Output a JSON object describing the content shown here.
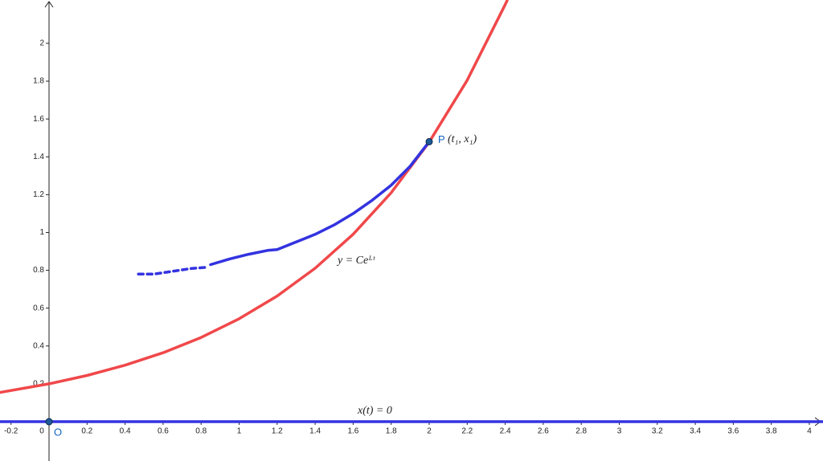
{
  "chart_data": {
    "type": "line",
    "xlim": [
      -0.258,
      4.072
    ],
    "ylim": [
      -0.208,
      2.229
    ],
    "xticks": [
      -0.2,
      0,
      0.2,
      0.4,
      0.6,
      0.8,
      1,
      1.2,
      1.4,
      1.6,
      1.8,
      2,
      2.2,
      2.4,
      2.6,
      2.8,
      3,
      3.2,
      3.4,
      3.6,
      3.8,
      4
    ],
    "yticks": [
      0.2,
      0.4,
      0.6,
      0.8,
      1,
      1.2,
      1.4,
      1.6,
      1.8,
      2
    ],
    "series": [
      {
        "color": "#f0484a",
        "dash": false,
        "x": [
          -0.26,
          0,
          0.2,
          0.4,
          0.6,
          0.8,
          1.0,
          1.2,
          1.4,
          1.6,
          1.8,
          2.0,
          2.2,
          2.4,
          2.41
        ],
        "values": [
          0.1542,
          0.2,
          0.2443,
          0.2984,
          0.3644,
          0.4451,
          0.5437,
          0.664,
          0.811,
          0.9906,
          1.2099,
          1.4778,
          1.805,
          2.2046,
          2.2268
        ]
      },
      {
        "color": "#3333e0",
        "dash": true,
        "x": [
          0.47,
          0.55,
          0.65,
          0.75,
          0.82
        ],
        "values": [
          0.78,
          0.78,
          0.795,
          0.81,
          0.815
        ]
      },
      {
        "color": "#3333e0",
        "dash": false,
        "x": [
          0.85,
          0.95,
          1.05,
          1.15,
          1.2,
          1.3,
          1.4,
          1.5,
          1.6,
          1.7,
          1.8,
          1.9,
          2.0
        ],
        "values": [
          0.83,
          0.86,
          0.885,
          0.905,
          0.91,
          0.95,
          0.99,
          1.04,
          1.1,
          1.17,
          1.25,
          1.35,
          1.48
        ]
      },
      {
        "color": "#3333e0",
        "dash": false,
        "x": [
          -0.26,
          4.07
        ],
        "values": [
          0,
          0
        ]
      }
    ],
    "points": [
      {
        "label": "O",
        "x": 0,
        "y": 0
      },
      {
        "label": "P",
        "x": 2,
        "y": 1.48
      }
    ],
    "annotations": [
      "(t₁, x₁)",
      "y = Ceᴸᵗ",
      "x(t) = 0"
    ]
  }
}
